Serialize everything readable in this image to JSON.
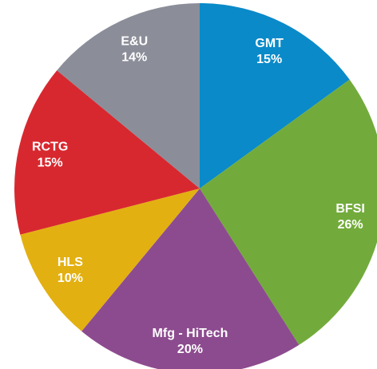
{
  "chart_data": {
    "type": "pie",
    "categories": [
      "GMT",
      "BFSI",
      "Mfg - HiTech",
      "HLS",
      "RCTG",
      "E&U"
    ],
    "values": [
      15,
      26,
      20,
      10,
      15,
      14
    ],
    "value_labels": [
      "15%",
      "26%",
      "20%",
      "10%",
      "15%",
      "14%"
    ],
    "colors": [
      "#0a8ac9",
      "#72ab3b",
      "#8d4b8f",
      "#e3b011",
      "#d8282f",
      "#8b8e99"
    ]
  }
}
